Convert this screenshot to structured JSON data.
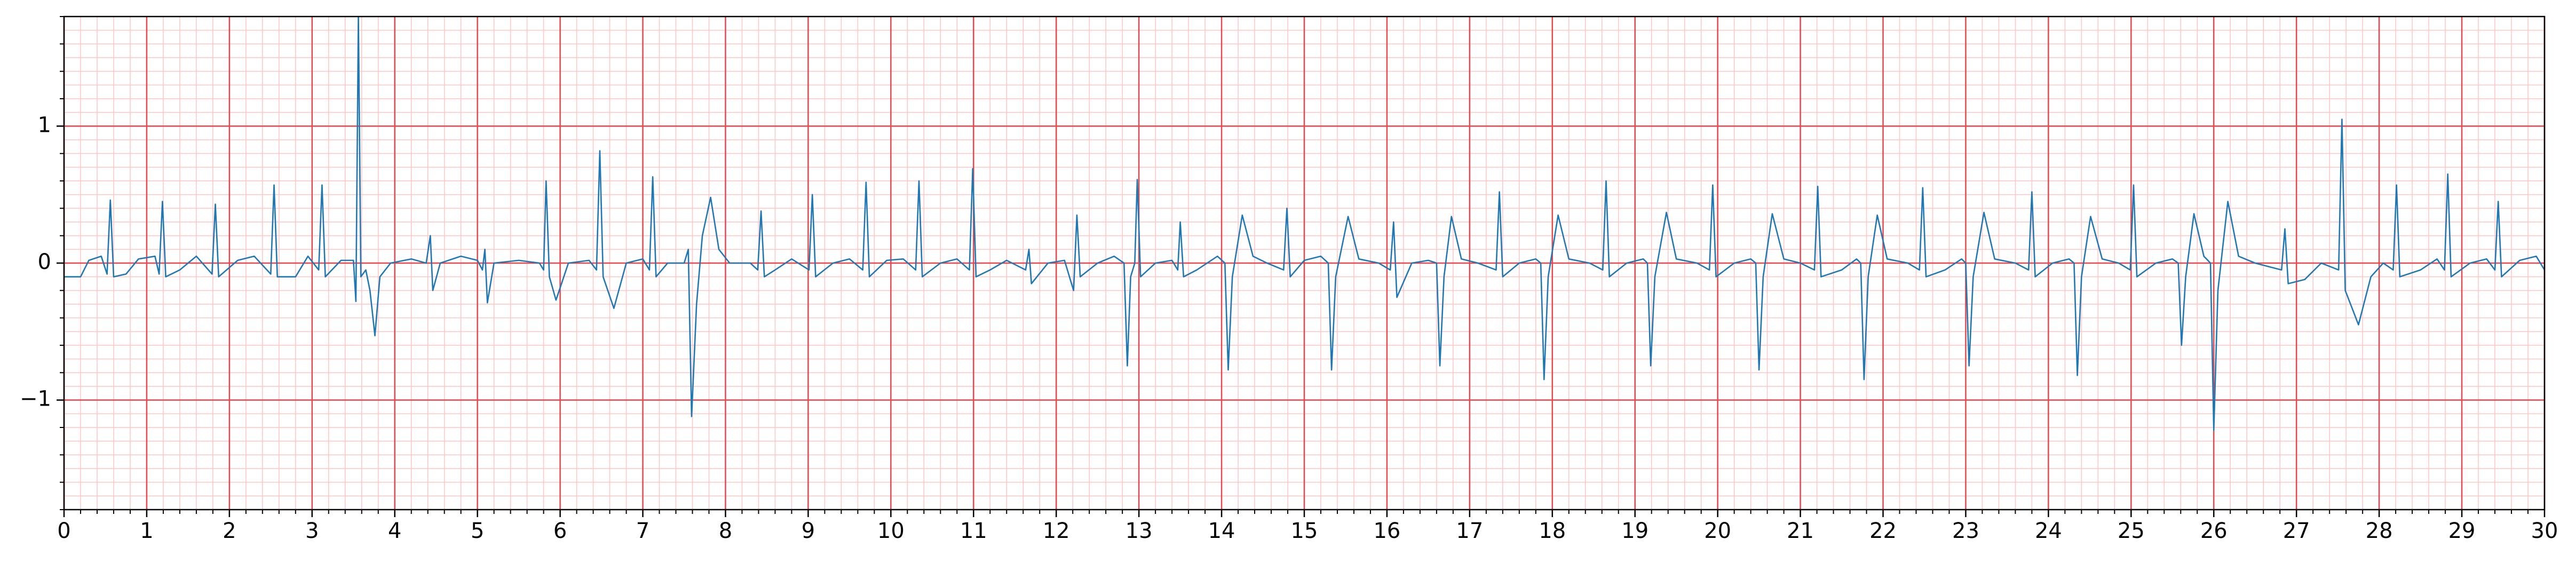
{
  "chart_data": {
    "type": "line",
    "x": [
      0,
      0.2,
      0.3,
      0.45,
      0.52,
      0.56,
      0.6,
      0.75,
      0.9,
      1.1,
      1.15,
      1.19,
      1.23,
      1.4,
      1.6,
      1.79,
      1.83,
      1.87,
      2.1,
      2.3,
      2.5,
      2.54,
      2.58,
      2.8,
      2.95,
      3.08,
      3.12,
      3.16,
      3.35,
      3.5,
      3.53,
      3.56,
      3.59,
      3.65,
      3.7,
      3.76,
      3.82,
      3.95,
      4.2,
      4.38,
      4.43,
      4.46,
      4.55,
      4.8,
      5.0,
      5.06,
      5.09,
      5.12,
      5.2,
      5.5,
      5.75,
      5.8,
      5.83,
      5.87,
      5.95,
      6.1,
      6.35,
      6.44,
      6.48,
      6.52,
      6.65,
      6.8,
      7.0,
      7.08,
      7.12,
      7.16,
      7.3,
      7.5,
      7.55,
      7.59,
      7.65,
      7.72,
      7.82,
      7.92,
      8.05,
      8.3,
      8.39,
      8.43,
      8.47,
      8.6,
      8.8,
      9.01,
      9.05,
      9.09,
      9.3,
      9.5,
      9.66,
      9.7,
      9.74,
      9.95,
      10.15,
      10.3,
      10.34,
      10.38,
      10.6,
      10.8,
      10.95,
      10.99,
      11.03,
      11.2,
      11.4,
      11.63,
      11.67,
      11.7,
      11.9,
      12.1,
      12.21,
      12.25,
      12.29,
      12.5,
      12.7,
      12.82,
      12.86,
      12.9,
      12.95,
      12.98,
      13.02,
      13.2,
      13.4,
      13.47,
      13.5,
      13.54,
      13.7,
      13.95,
      14.04,
      14.08,
      14.13,
      14.25,
      14.38,
      14.55,
      14.75,
      14.79,
      14.83,
      15.0,
      15.2,
      15.29,
      15.33,
      15.38,
      15.53,
      15.66,
      15.9,
      16.04,
      16.08,
      16.12,
      16.3,
      16.5,
      16.6,
      16.64,
      16.69,
      16.78,
      16.9,
      17.1,
      17.32,
      17.36,
      17.4,
      17.6,
      17.8,
      17.86,
      17.9,
      17.95,
      18.07,
      18.2,
      18.45,
      18.61,
      18.65,
      18.69,
      18.9,
      19.1,
      19.15,
      19.19,
      19.24,
      19.38,
      19.5,
      19.75,
      19.9,
      19.94,
      19.98,
      20.2,
      20.4,
      20.46,
      20.5,
      20.55,
      20.66,
      20.8,
      21.0,
      21.17,
      21.21,
      21.25,
      21.5,
      21.68,
      21.73,
      21.77,
      21.82,
      21.93,
      22.05,
      22.3,
      22.44,
      22.48,
      22.52,
      22.75,
      22.95,
      23.0,
      23.04,
      23.09,
      23.22,
      23.35,
      23.6,
      23.76,
      23.8,
      23.84,
      24.05,
      24.25,
      24.31,
      24.35,
      24.4,
      24.51,
      24.65,
      24.85,
      24.99,
      25.03,
      25.07,
      25.3,
      25.5,
      25.57,
      25.61,
      25.66,
      25.76,
      25.88,
      25.96,
      26.0,
      26.05,
      26.17,
      26.3,
      26.5,
      26.82,
      26.86,
      26.9,
      27.1,
      27.3,
      27.51,
      27.55,
      27.59,
      27.75,
      27.9,
      28.05,
      28.17,
      28.21,
      28.25,
      28.5,
      28.7,
      28.79,
      28.83,
      28.87,
      29.1,
      29.3,
      29.4,
      29.44,
      29.48,
      29.7,
      29.9,
      30
    ],
    "values": [
      -0.1,
      -0.1,
      0.02,
      0.05,
      -0.08,
      0.46,
      -0.1,
      -0.08,
      0.03,
      0.05,
      -0.08,
      0.45,
      -0.1,
      -0.05,
      0.05,
      -0.08,
      0.43,
      -0.1,
      0.02,
      0.05,
      -0.08,
      0.57,
      -0.1,
      -0.1,
      0.05,
      -0.05,
      0.57,
      -0.1,
      0.02,
      0.02,
      -0.28,
      1.8,
      -0.1,
      -0.05,
      -0.2,
      -0.53,
      -0.1,
      0.0,
      0.03,
      0.0,
      0.2,
      -0.2,
      0.0,
      0.05,
      0.02,
      -0.05,
      0.1,
      -0.29,
      0.0,
      0.02,
      0.0,
      -0.05,
      0.6,
      -0.1,
      -0.27,
      0.0,
      0.02,
      -0.05,
      0.82,
      -0.1,
      -0.33,
      0.0,
      0.03,
      -0.05,
      0.63,
      -0.1,
      0.0,
      0.0,
      0.1,
      -1.12,
      -0.3,
      0.2,
      0.48,
      0.1,
      0.0,
      0.0,
      -0.05,
      0.38,
      -0.1,
      -0.05,
      0.03,
      -0.05,
      0.5,
      -0.1,
      0.0,
      0.03,
      -0.05,
      0.59,
      -0.1,
      0.02,
      0.03,
      -0.05,
      0.6,
      -0.1,
      0.0,
      0.03,
      -0.05,
      0.69,
      -0.1,
      -0.05,
      0.02,
      -0.05,
      0.1,
      -0.15,
      0.0,
      0.02,
      -0.2,
      0.35,
      -0.1,
      0.0,
      0.05,
      0.0,
      -0.75,
      -0.1,
      0.0,
      0.61,
      -0.1,
      0.0,
      0.02,
      -0.05,
      0.3,
      -0.1,
      -0.05,
      0.05,
      0.0,
      -0.78,
      -0.1,
      0.35,
      0.05,
      0.0,
      -0.05,
      0.4,
      -0.1,
      0.02,
      0.05,
      0.0,
      -0.78,
      -0.1,
      0.34,
      0.03,
      0.0,
      -0.05,
      0.3,
      -0.25,
      0.0,
      0.02,
      0.0,
      -0.75,
      -0.1,
      0.34,
      0.03,
      0.0,
      -0.05,
      0.52,
      -0.1,
      0.0,
      0.03,
      0.0,
      -0.85,
      -0.1,
      0.35,
      0.03,
      0.0,
      -0.05,
      0.6,
      -0.1,
      0.0,
      0.03,
      0.0,
      -0.75,
      -0.1,
      0.37,
      0.03,
      0.0,
      -0.05,
      0.57,
      -0.1,
      0.0,
      0.03,
      0.0,
      -0.78,
      -0.1,
      0.36,
      0.03,
      0.0,
      -0.05,
      0.56,
      -0.1,
      -0.05,
      0.03,
      0.0,
      -0.85,
      -0.1,
      0.35,
      0.03,
      0.0,
      -0.05,
      0.55,
      -0.1,
      -0.05,
      0.03,
      0.0,
      -0.75,
      -0.1,
      0.37,
      0.03,
      0.0,
      -0.05,
      0.52,
      -0.1,
      0.0,
      0.03,
      0.0,
      -0.82,
      -0.1,
      0.34,
      0.03,
      0.0,
      -0.05,
      0.57,
      -0.1,
      0.0,
      0.03,
      0.0,
      -0.6,
      -0.1,
      0.36,
      0.05,
      0.0,
      -1.22,
      -0.2,
      0.45,
      0.05,
      0.0,
      -0.05,
      0.25,
      -0.15,
      -0.12,
      0.0,
      -0.05,
      1.05,
      -0.2,
      -0.45,
      -0.1,
      0.0,
      -0.05,
      0.57,
      -0.1,
      -0.05,
      0.03,
      -0.05,
      0.65,
      -0.1,
      0.0,
      0.03,
      -0.05,
      0.45,
      -0.1,
      0.02,
      0.05,
      -0.05
    ],
    "color": "#1f77b4",
    "xlim": [
      0,
      30
    ],
    "xticks": [
      0,
      1,
      2,
      3,
      4,
      5,
      6,
      7,
      8,
      9,
      10,
      11,
      12,
      13,
      14,
      15,
      16,
      17,
      18,
      19,
      20,
      21,
      22,
      23,
      24,
      25,
      26,
      27,
      28,
      29,
      30
    ],
    "ylim": [
      -1.8,
      1.8
    ],
    "yticks": [
      {
        "value": -1,
        "label": "−1"
      },
      0,
      1
    ],
    "grid": true,
    "grid_color": "#e8474c",
    "minor_grid_color": "#ffc4c4",
    "minor_grid": {
      "x_step": 0.2,
      "y_step": 0.1
    },
    "minor_ticks": {
      "x_step": 0.2,
      "y_step": 0.2
    }
  }
}
